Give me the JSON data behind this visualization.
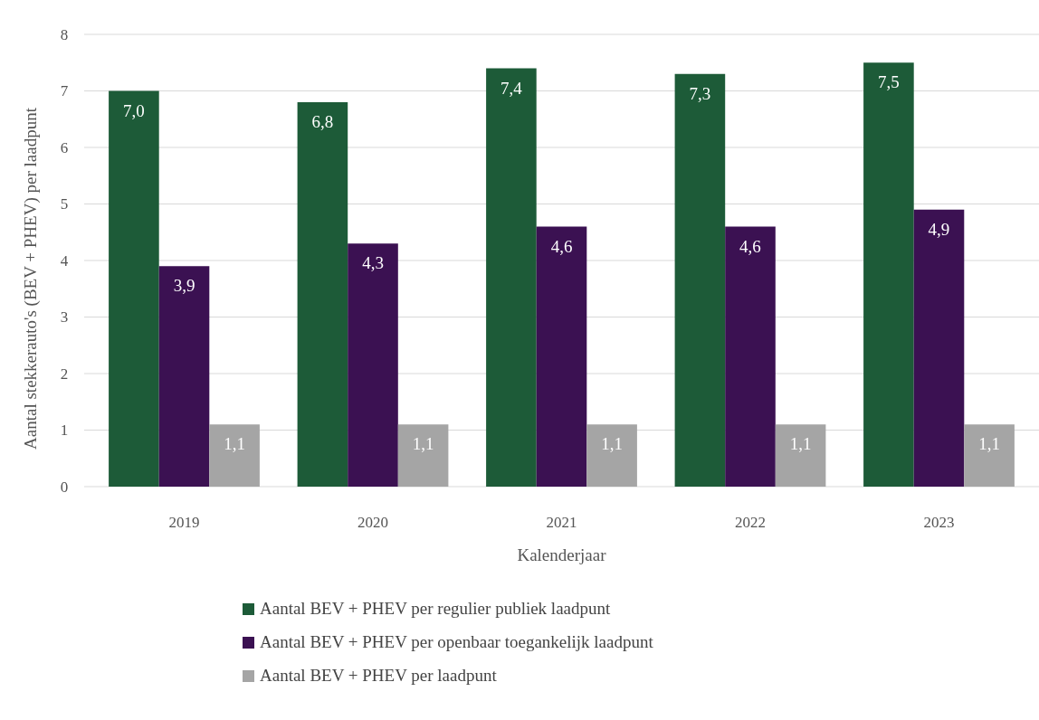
{
  "chart_data": {
    "type": "bar",
    "xlabel": "Kalenderjaar",
    "ylabel": "Aantal stekkerauto's (BEV + PHEV) per laadpunt",
    "categories": [
      "2019",
      "2020",
      "2021",
      "2022",
      "2023"
    ],
    "series": [
      {
        "name": "Aantal BEV + PHEV per regulier publiek laadpunt",
        "color": "#1d5b38",
        "values": [
          7.0,
          6.8,
          7.4,
          7.3,
          7.5
        ],
        "value_labels": [
          "7,0",
          "6,8",
          "7,4",
          "7,3",
          "7,5"
        ]
      },
      {
        "name": "Aantal BEV + PHEV per openbaar toegankelijk laadpunt",
        "color": "#3b1152",
        "values": [
          3.9,
          4.3,
          4.6,
          4.6,
          4.9
        ],
        "value_labels": [
          "3,9",
          "4,3",
          "4,6",
          "4,6",
          "4,9"
        ]
      },
      {
        "name": "Aantal BEV + PHEV per laadpunt",
        "color": "#a5a5a5",
        "values": [
          1.1,
          1.1,
          1.1,
          1.1,
          1.1
        ],
        "value_labels": [
          "1,1",
          "1,1",
          "1,1",
          "1,1",
          "1,1"
        ]
      }
    ],
    "ylim": [
      0,
      8
    ],
    "yticks": [
      0,
      1,
      2,
      3,
      4,
      5,
      6,
      7,
      8
    ],
    "grid": "y",
    "legend": "bottom"
  }
}
